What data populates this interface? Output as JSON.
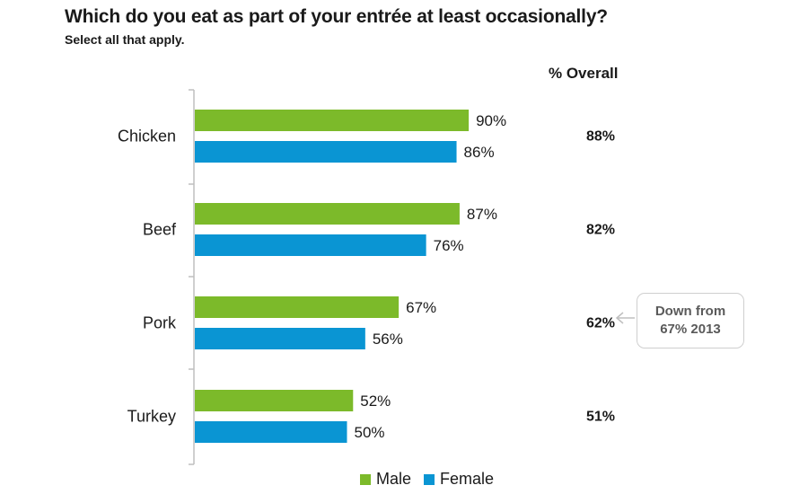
{
  "title": "Which do you eat as part of your entrée at least occasionally?",
  "subtitle": "Select all that apply.",
  "overall_header": "% Overall",
  "callout": {
    "line1": "Down from",
    "line2": "67% 2013"
  },
  "colors": {
    "male": "#7cba2a",
    "female": "#0a95d3",
    "axis": "#bfbfbf",
    "callout_border": "#cfcfcf"
  },
  "chart_data": {
    "type": "bar",
    "orientation": "horizontal",
    "categories": [
      "Chicken",
      "Beef",
      "Pork",
      "Turkey"
    ],
    "series": [
      {
        "name": "Male",
        "values": [
          90,
          87,
          67,
          52
        ]
      },
      {
        "name": "Female",
        "values": [
          86,
          76,
          56,
          50
        ]
      }
    ],
    "value_labels": {
      "Male": [
        "90%",
        "87%",
        "67%",
        "52%"
      ],
      "Female": [
        "86%",
        "76%",
        "56%",
        "50%"
      ]
    },
    "overall": [
      "88%",
      "82%",
      "62%",
      "51%"
    ],
    "xlim": [
      0,
      100
    ],
    "grid": false,
    "legend_position": "bottom"
  }
}
